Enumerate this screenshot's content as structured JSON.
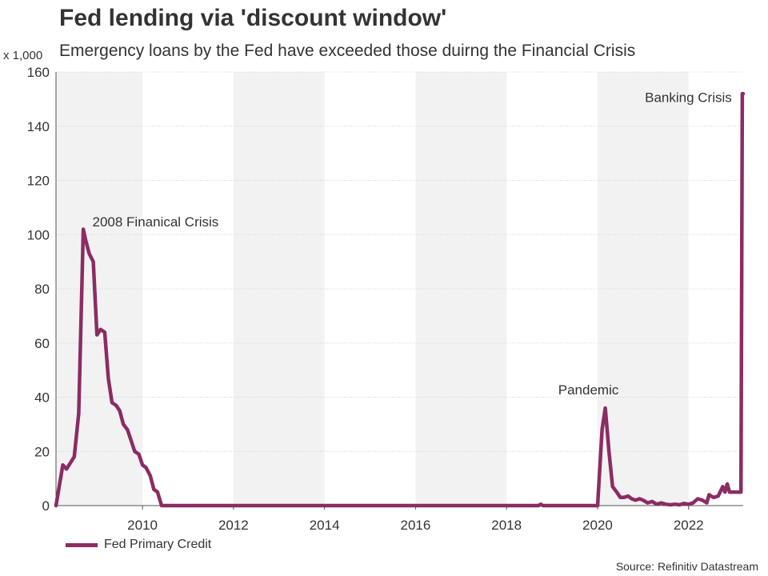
{
  "chart_data": {
    "type": "line",
    "title": "Fed lending via 'discount window'",
    "subtitle": "Emergency loans by the Fed have exceeded those duirng the Financial Crisis",
    "unit_label": "x 1,000",
    "source": "Source: Refinitiv Datastream",
    "ylim": [
      0,
      160
    ],
    "yticks": [
      0,
      20,
      40,
      60,
      80,
      100,
      120,
      140,
      160
    ],
    "xlim": [
      2008.1,
      2023.2
    ],
    "xticks": [
      "2010",
      "2012",
      "2014",
      "2016",
      "2018",
      "2020",
      "2022"
    ],
    "grid": "horizontal dotted",
    "shaded_bands": [
      [
        2008.1,
        2010
      ],
      [
        2012,
        2014
      ],
      [
        2016,
        2018
      ],
      [
        2020,
        2022
      ]
    ],
    "legend_position": "bottom-left",
    "series": [
      {
        "name": "Fed Primary Credit",
        "color": "#8b2c63",
        "x": [
          2008.1,
          2008.2,
          2008.25,
          2008.33,
          2008.5,
          2008.6,
          2008.7,
          2008.75,
          2008.83,
          2008.92,
          2009.0,
          2009.08,
          2009.17,
          2009.25,
          2009.33,
          2009.42,
          2009.5,
          2009.58,
          2009.67,
          2009.75,
          2009.83,
          2009.92,
          2010.0,
          2010.08,
          2010.17,
          2010.25,
          2010.33,
          2010.42,
          2010.5,
          2011,
          2012,
          2013,
          2014,
          2015,
          2016,
          2017,
          2018,
          2018.7,
          2018.75,
          2018.8,
          2019,
          2019.5,
          2020.0,
          2020.1,
          2020.17,
          2020.25,
          2020.33,
          2020.42,
          2020.5,
          2020.58,
          2020.67,
          2020.75,
          2020.83,
          2020.92,
          2021.0,
          2021.1,
          2021.2,
          2021.3,
          2021.4,
          2021.5,
          2021.6,
          2021.7,
          2021.8,
          2021.9,
          2022.0,
          2022.1,
          2022.2,
          2022.3,
          2022.4,
          2022.45,
          2022.55,
          2022.65,
          2022.75,
          2022.8,
          2022.85,
          2022.9,
          2022.95,
          2023.0,
          2023.1,
          2023.15,
          2023.18,
          2023.2
        ],
        "values": [
          0,
          10,
          15,
          13.5,
          18,
          34,
          102,
          98,
          93,
          90,
          63,
          65,
          64,
          47,
          38,
          37,
          35,
          30,
          28,
          24,
          20,
          19,
          15,
          14,
          11,
          6,
          5,
          0,
          0,
          0,
          0,
          0,
          0,
          0,
          0,
          0,
          0,
          0,
          0.5,
          0,
          0,
          0,
          0,
          28,
          36,
          20,
          7,
          5,
          3,
          3,
          3.5,
          2.5,
          2,
          2.5,
          2,
          1,
          1.5,
          0.5,
          1,
          0.5,
          0.3,
          0.5,
          0.3,
          0.8,
          0.5,
          1,
          2.5,
          2,
          1,
          4,
          3,
          3.5,
          7,
          5,
          8,
          5,
          5,
          5,
          5,
          5,
          152,
          152
        ]
      }
    ],
    "annotations": [
      {
        "text": "2008 Finanical Crisis",
        "x": 2008.9,
        "y": 103
      },
      {
        "text": "Pandemic",
        "x": 2019.8,
        "y": 41
      },
      {
        "text": "Banking Crisis",
        "x": 2022.95,
        "y": 149
      }
    ]
  }
}
